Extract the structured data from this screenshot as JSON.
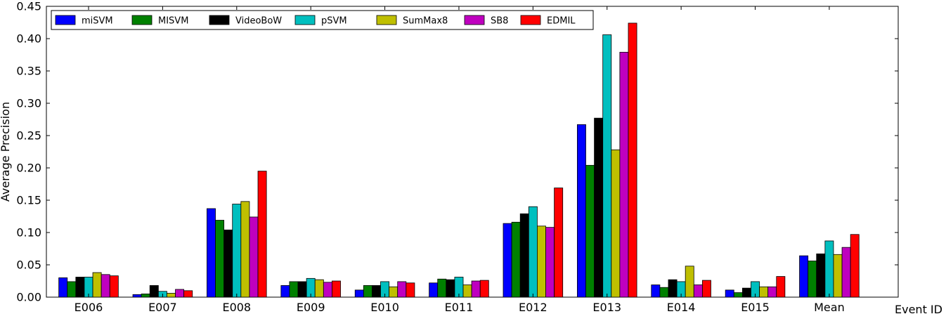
{
  "chart_data": {
    "type": "bar",
    "title": "",
    "xlabel": "Event ID",
    "ylabel": "Average Precision",
    "ylim": [
      0,
      0.45
    ],
    "yticks": [
      "0.00",
      "0.05",
      "0.10",
      "0.15",
      "0.20",
      "0.25",
      "0.30",
      "0.35",
      "0.40",
      "0.45"
    ],
    "grid": false,
    "legend_position": "top-left",
    "categories": [
      "E006",
      "E007",
      "E008",
      "E009",
      "E010",
      "E011",
      "E012",
      "E013",
      "E014",
      "E015",
      "Mean"
    ],
    "series": [
      {
        "name": "miSVM",
        "color": "#0000ff",
        "values": [
          0.03,
          0.004,
          0.137,
          0.018,
          0.011,
          0.022,
          0.114,
          0.267,
          0.019,
          0.011,
          0.064
        ]
      },
      {
        "name": "MISVM",
        "color": "#008000",
        "values": [
          0.024,
          0.005,
          0.119,
          0.024,
          0.018,
          0.028,
          0.116,
          0.204,
          0.015,
          0.007,
          0.056
        ]
      },
      {
        "name": "VideoBoW",
        "color": "#000000",
        "values": [
          0.031,
          0.018,
          0.104,
          0.024,
          0.018,
          0.027,
          0.129,
          0.277,
          0.027,
          0.014,
          0.067
        ]
      },
      {
        "name": "pSVM",
        "color": "#00bfbf",
        "values": [
          0.031,
          0.009,
          0.144,
          0.029,
          0.024,
          0.031,
          0.14,
          0.406,
          0.024,
          0.024,
          0.087
        ]
      },
      {
        "name": "SumMax8",
        "color": "#bfbf00",
        "values": [
          0.038,
          0.006,
          0.148,
          0.027,
          0.016,
          0.019,
          0.11,
          0.228,
          0.048,
          0.016,
          0.066
        ]
      },
      {
        "name": "SB8",
        "color": "#bf00bf",
        "values": [
          0.035,
          0.012,
          0.124,
          0.023,
          0.024,
          0.025,
          0.108,
          0.379,
          0.019,
          0.016,
          0.077
        ]
      },
      {
        "name": "EDMIL",
        "color": "#ff0000",
        "values": [
          0.033,
          0.01,
          0.195,
          0.025,
          0.022,
          0.026,
          0.169,
          0.424,
          0.026,
          0.032,
          0.097
        ]
      }
    ]
  }
}
